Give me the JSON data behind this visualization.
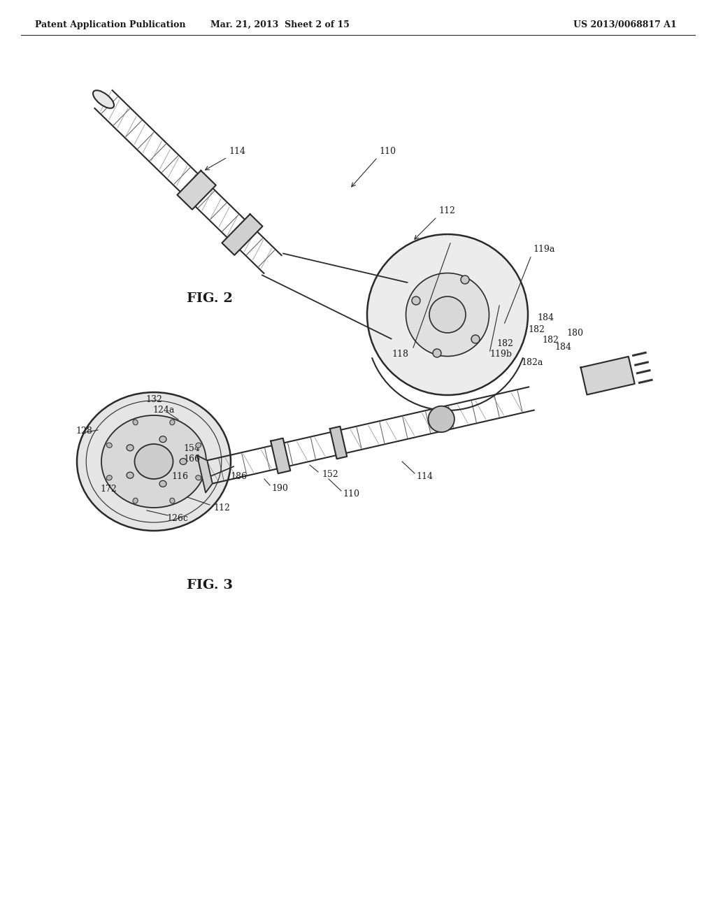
{
  "background_color": "#ffffff",
  "header_left": "Patent Application Publication",
  "header_center": "Mar. 21, 2013  Sheet 2 of 15",
  "header_right": "US 2013/0068817 A1",
  "fig2_label": "FIG. 2",
  "fig3_label": "FIG. 3",
  "header_font_size": 9,
  "label_font_size": 13,
  "ref_font_size": 9,
  "line_color": "#2a2a2a",
  "text_color": "#1a1a1a"
}
